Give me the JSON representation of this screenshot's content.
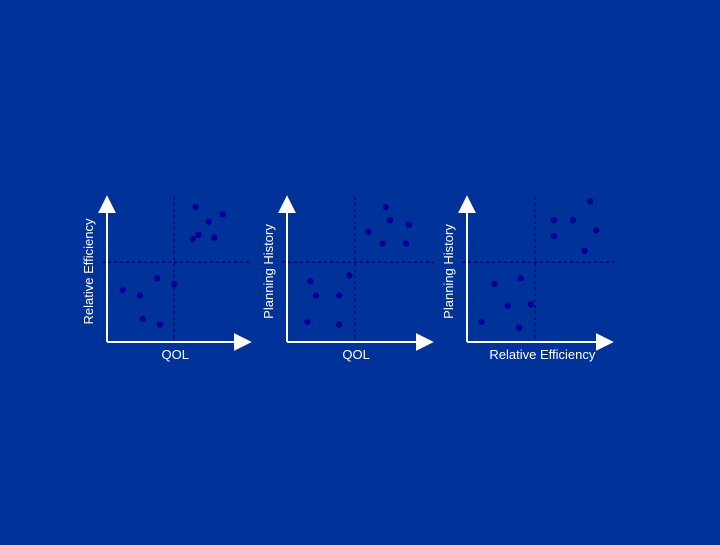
{
  "colors": {
    "background": "#003399",
    "axis": "#ffffff",
    "divider": "#000080",
    "marker": "#000099",
    "text": "#ffffff"
  },
  "chart_data": [
    {
      "type": "scatter",
      "xlabel": "QOL",
      "ylabel": "Relative Efficiency",
      "xlim": [
        0,
        1
      ],
      "ylim": [
        0,
        1
      ],
      "divider": [
        0.47,
        0.55
      ],
      "points": [
        {
          "x": 0.11,
          "y": 0.36
        },
        {
          "x": 0.23,
          "y": 0.32
        },
        {
          "x": 0.35,
          "y": 0.44
        },
        {
          "x": 0.47,
          "y": 0.4
        },
        {
          "x": 0.25,
          "y": 0.16
        },
        {
          "x": 0.37,
          "y": 0.12
        },
        {
          "x": 0.62,
          "y": 0.93
        },
        {
          "x": 0.71,
          "y": 0.83
        },
        {
          "x": 0.81,
          "y": 0.88
        },
        {
          "x": 0.6,
          "y": 0.71
        },
        {
          "x": 0.64,
          "y": 0.74
        },
        {
          "x": 0.75,
          "y": 0.72
        }
      ]
    },
    {
      "type": "scatter",
      "xlabel": "QOL",
      "ylabel": "Planning History",
      "xlim": [
        0,
        1
      ],
      "ylim": [
        0,
        1
      ],
      "divider": [
        0.47,
        0.55
      ],
      "points": [
        {
          "x": 0.16,
          "y": 0.42
        },
        {
          "x": 0.2,
          "y": 0.32
        },
        {
          "x": 0.36,
          "y": 0.32
        },
        {
          "x": 0.43,
          "y": 0.46
        },
        {
          "x": 0.14,
          "y": 0.14
        },
        {
          "x": 0.36,
          "y": 0.12
        },
        {
          "x": 0.68,
          "y": 0.93
        },
        {
          "x": 0.71,
          "y": 0.84
        },
        {
          "x": 0.84,
          "y": 0.81
        },
        {
          "x": 0.56,
          "y": 0.76
        },
        {
          "x": 0.66,
          "y": 0.68
        },
        {
          "x": 0.82,
          "y": 0.68
        }
      ]
    },
    {
      "type": "scatter",
      "xlabel": "Relative Efficiency",
      "ylabel": "Planning History",
      "xlim": [
        0,
        1
      ],
      "ylim": [
        0,
        1
      ],
      "divider": [
        0.47,
        0.55
      ],
      "points": [
        {
          "x": 0.19,
          "y": 0.4
        },
        {
          "x": 0.37,
          "y": 0.44
        },
        {
          "x": 0.28,
          "y": 0.25
        },
        {
          "x": 0.44,
          "y": 0.26
        },
        {
          "x": 0.1,
          "y": 0.14
        },
        {
          "x": 0.36,
          "y": 0.1
        },
        {
          "x": 0.6,
          "y": 0.84
        },
        {
          "x": 0.73,
          "y": 0.84
        },
        {
          "x": 0.85,
          "y": 0.97
        },
        {
          "x": 0.6,
          "y": 0.73
        },
        {
          "x": 0.89,
          "y": 0.77
        },
        {
          "x": 0.81,
          "y": 0.63
        }
      ]
    }
  ]
}
